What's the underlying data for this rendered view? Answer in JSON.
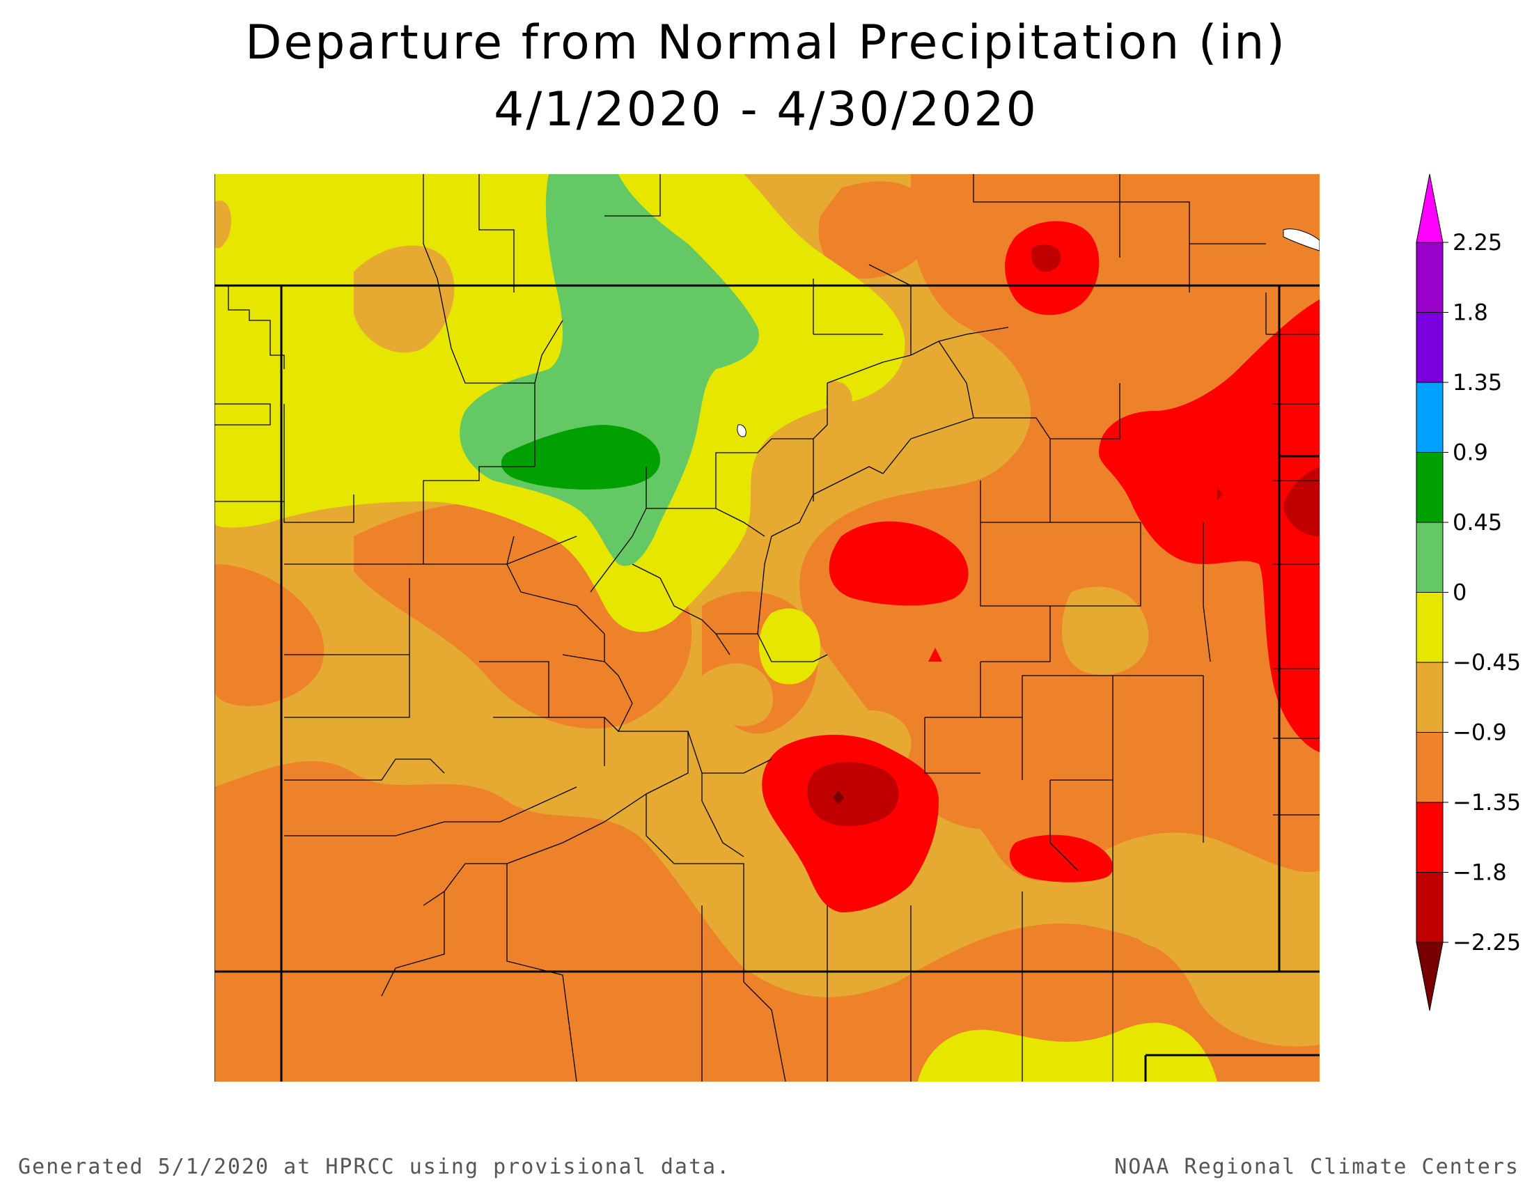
{
  "title": {
    "line1": "Departure from Normal Precipitation (in)",
    "line2": "4/1/2020 - 4/30/2020"
  },
  "legend": {
    "units": "in",
    "breaks": [
      "2.25",
      "1.8",
      "1.35",
      "0.9",
      "0.45",
      "0",
      "−0.45",
      "−0.9",
      "−1.35",
      "−1.8",
      "−2.25"
    ],
    "bins": [
      {
        "range": "> 2.25",
        "color": "#ff00ff"
      },
      {
        "range": "1.8 to 2.25",
        "color": "#9900cc"
      },
      {
        "range": "1.35 to 1.8",
        "color": "#7a00e0"
      },
      {
        "range": "0.9 to 1.35",
        "color": "#00a0ff"
      },
      {
        "range": "0.45 to 0.9",
        "color": "#00a000"
      },
      {
        "range": "0 to 0.45",
        "color": "#64c864"
      },
      {
        "range": "-0.45 to 0",
        "color": "#e6e600"
      },
      {
        "range": "-0.9 to -0.45",
        "color": "#e6aa32"
      },
      {
        "range": "-1.35 to -0.9",
        "color": "#ee822a"
      },
      {
        "range": "-1.8 to -1.35",
        "color": "#ff0000"
      },
      {
        "range": "-2.25 to -1.8",
        "color": "#c00000"
      },
      {
        "range": "< -2.25",
        "color": "#780000"
      }
    ]
  },
  "map": {
    "region": "Colorado and surrounding states",
    "background_color": "#e6aa32"
  },
  "footer": {
    "left": "Generated 5/1/2020 at HPRCC using provisional data.",
    "right": "NOAA Regional Climate Centers"
  }
}
